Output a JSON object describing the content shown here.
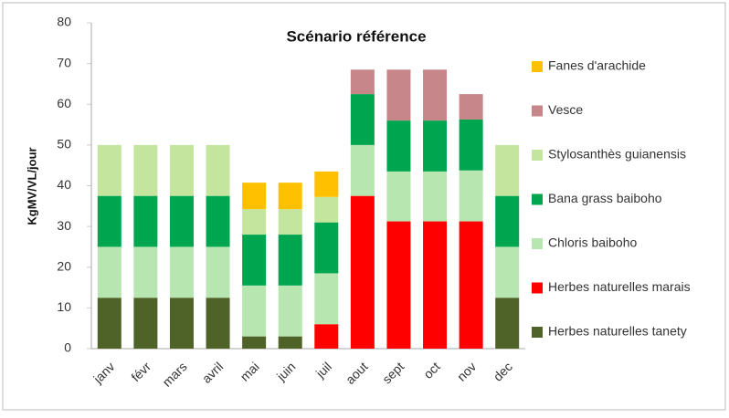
{
  "chart_data": {
    "type": "stacked_bar",
    "title": "Scénario référence",
    "y_label": "KgMV/VL/jour",
    "categories": [
      "janv",
      "févr",
      "mars",
      "avril",
      "mai",
      "juin",
      "juil",
      "aout",
      "sept",
      "oct",
      "nov",
      "dec"
    ],
    "series": [
      {
        "name": "Herbes naturelles tanety",
        "color": "#4f6228",
        "values": [
          12.5,
          12.5,
          12.5,
          12.5,
          3,
          3,
          0,
          0,
          0,
          0,
          0,
          12.5
        ]
      },
      {
        "name": "Herbes naturelles marais",
        "color": "#ff0000",
        "values": [
          0,
          0,
          0,
          0,
          0,
          0,
          6,
          37.5,
          31.25,
          31.25,
          31.25,
          0
        ]
      },
      {
        "name": "Chloris baiboho",
        "color": "#b8e6b0",
        "values": [
          12.5,
          12.5,
          12.5,
          12.5,
          12.5,
          12.5,
          12.5,
          12.5,
          12.25,
          12.25,
          12.5,
          12.5
        ]
      },
      {
        "name": "Bana grass baiboho",
        "color": "#00a54f",
        "values": [
          12.5,
          12.5,
          12.5,
          12.5,
          12.5,
          12.5,
          12.5,
          12.5,
          12.5,
          12.5,
          12.5,
          12.5
        ]
      },
      {
        "name": "Stylosanthès guianensis",
        "color": "#c4e59e",
        "values": [
          12.5,
          12.5,
          12.5,
          12.5,
          6.25,
          6.25,
          6.25,
          0,
          0,
          0,
          0,
          12.5
        ]
      },
      {
        "name": "Vesce",
        "color": "#c7868a",
        "values": [
          0,
          0,
          0,
          0,
          0,
          0,
          0,
          6,
          12.5,
          12.5,
          6.25,
          0
        ]
      },
      {
        "name": "Fanes d'arachide",
        "color": "#ffc000",
        "values": [
          0,
          0,
          0,
          0,
          6.5,
          6.5,
          6.25,
          0,
          0,
          0,
          0,
          0
        ]
      }
    ],
    "ylim": [
      0,
      80
    ],
    "yticks": [
      0,
      10,
      20,
      30,
      40,
      50,
      60,
      70,
      80
    ],
    "grid": false,
    "legend": "right"
  }
}
